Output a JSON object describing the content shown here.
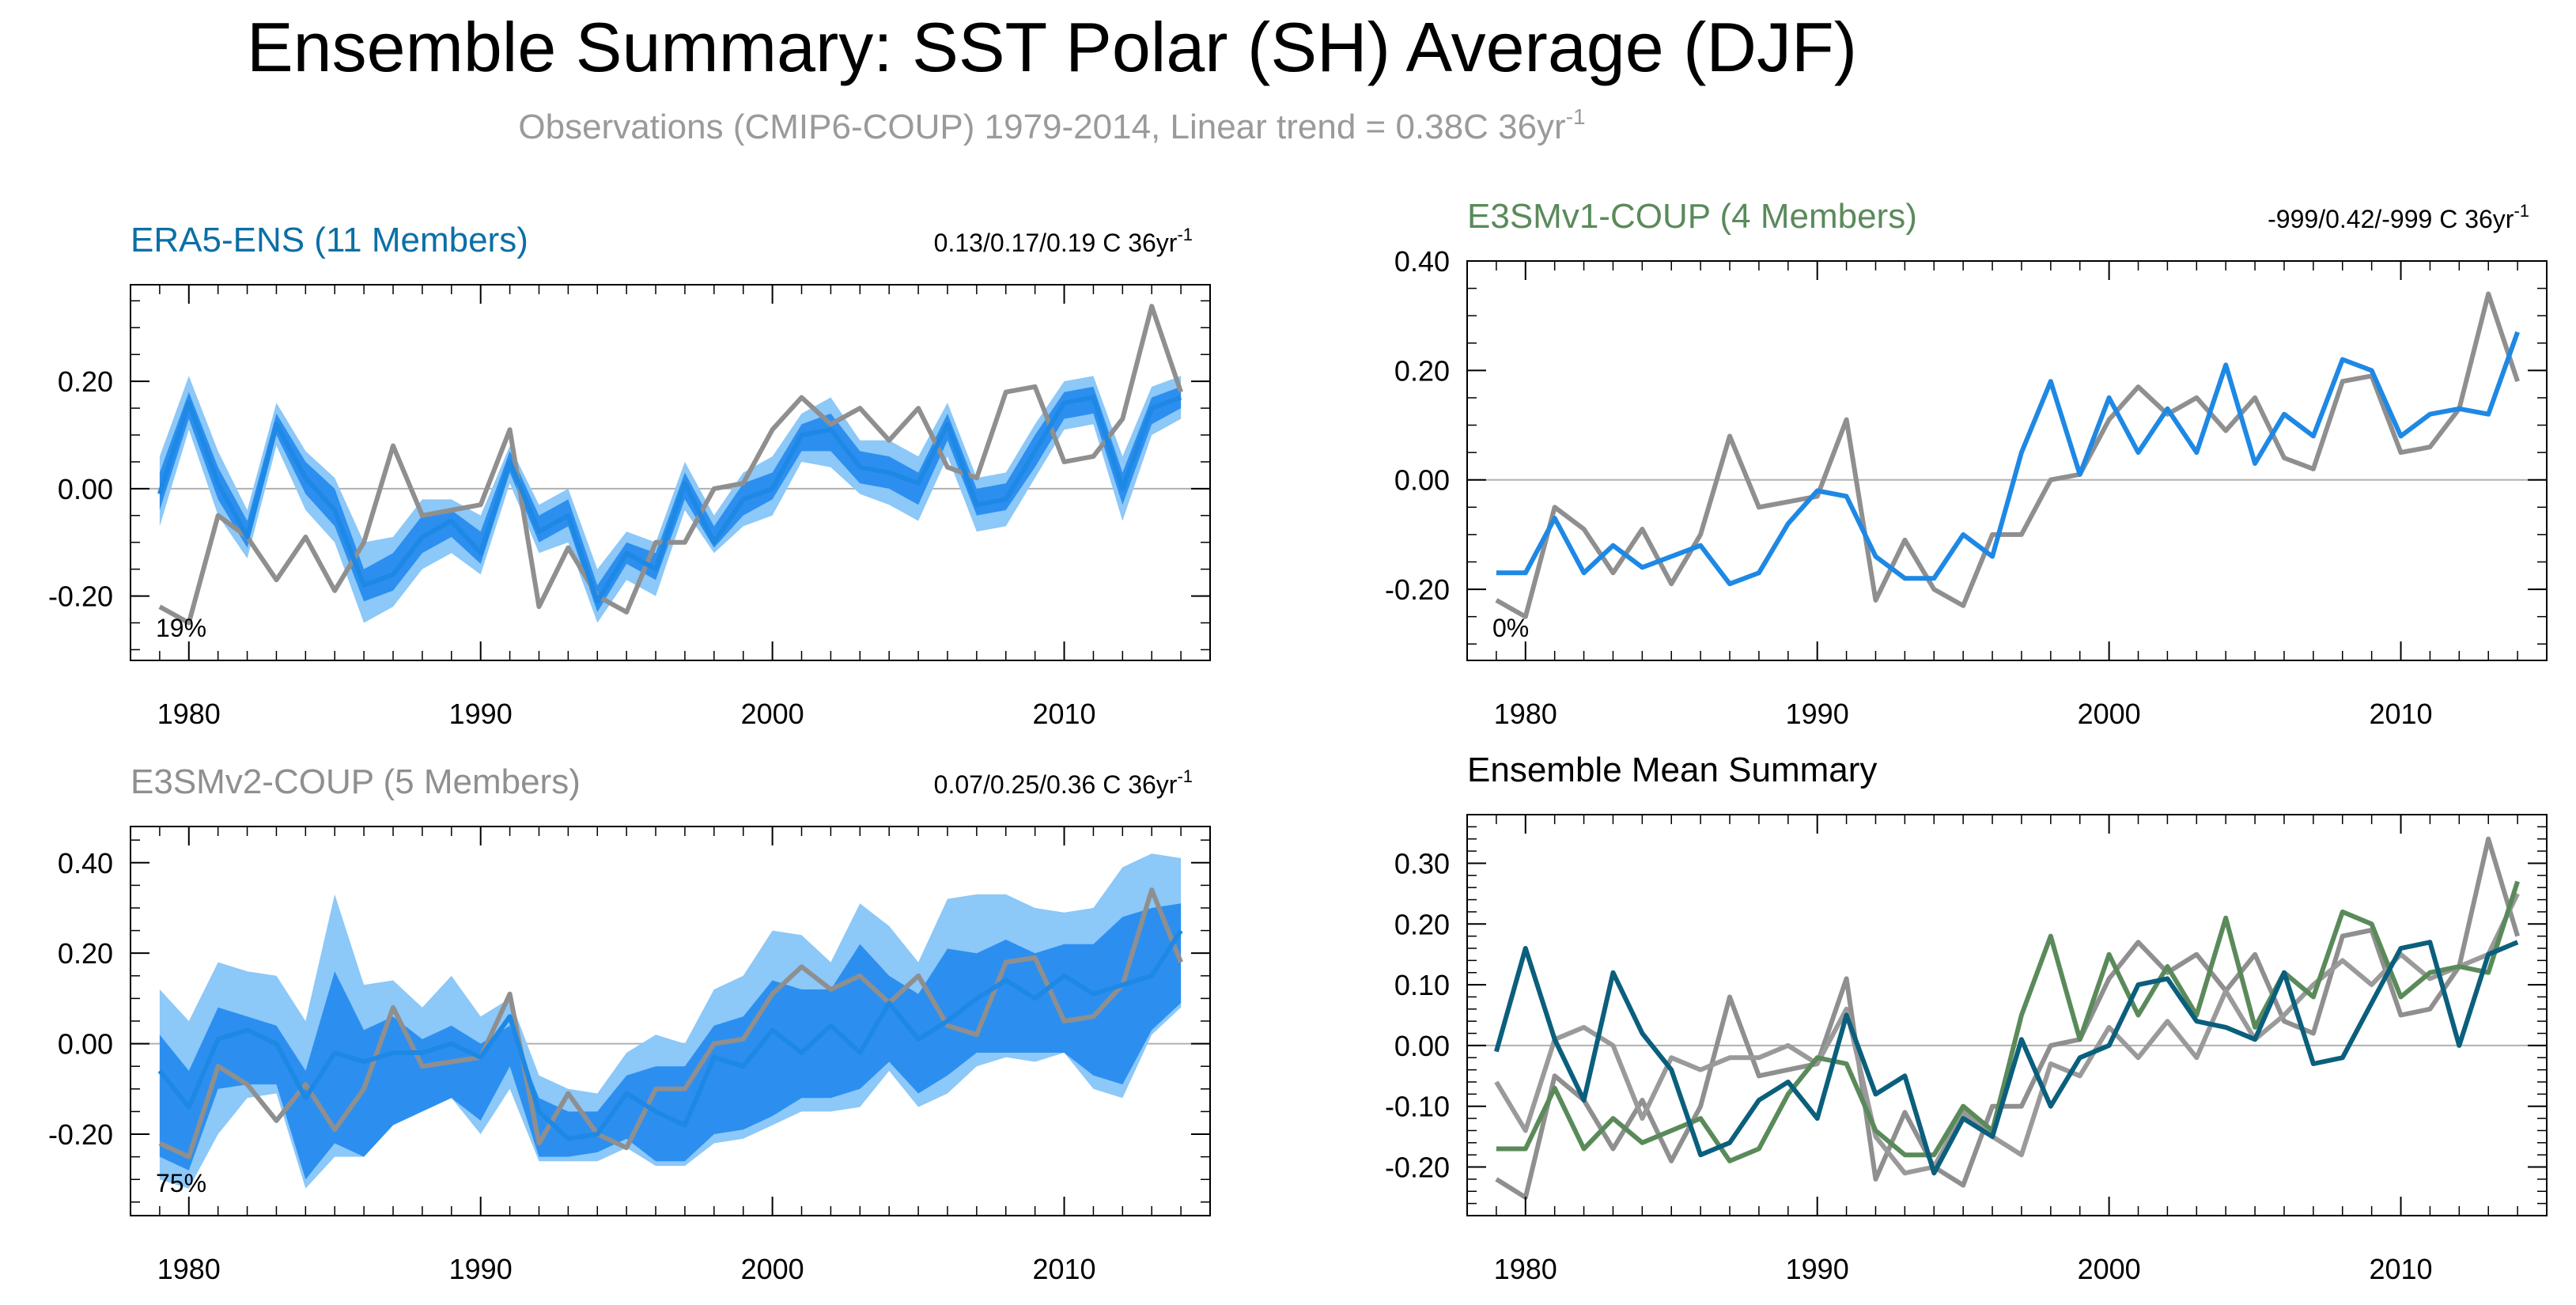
{
  "title": "Ensemble Summary: SST Polar (SH) Average (DJF)",
  "subtitle": "Observations (CMIP6-COUP) 1979-2014, Linear trend = 0.38C 36yr",
  "subtitle_exp": "-1",
  "colors": {
    "obs": "#8f8f8f",
    "ens_line": "#1e88e5",
    "band_inner": "#2c8ff0",
    "band_outer": "#8cc8f8",
    "era5_title": "#0b6fa6",
    "e3smv1_title": "#5a8a5a",
    "e3smv2_title": "#8f8f8f",
    "mean_era5": "#0a5f7c",
    "mean_e3smv1": "#5a8a5a",
    "mean_e3smv2": "#9a9a9a",
    "zero_line": "#b0b0b0"
  },
  "chart_data": [
    {
      "id": "era5",
      "type": "line",
      "title": "ERA5-ENS (11 Members)",
      "trend_label": "0.13/0.17/0.19 C 36yr",
      "trend_exp": "-1",
      "pct_label": "19%",
      "x": [
        1979,
        1980,
        1981,
        1982,
        1983,
        1984,
        1985,
        1986,
        1987,
        1988,
        1989,
        1990,
        1991,
        1992,
        1993,
        1994,
        1995,
        1996,
        1997,
        1998,
        1999,
        2000,
        2001,
        2002,
        2003,
        2004,
        2005,
        2006,
        2007,
        2008,
        2009,
        2010,
        2011,
        2012,
        2013,
        2014
      ],
      "xlim": [
        1978,
        2015
      ],
      "ylim": [
        -0.32,
        0.38
      ],
      "yticks": [
        -0.2,
        0.0,
        0.2
      ],
      "ytick_labels": [
        "-0.20",
        "0.00",
        "0.20"
      ],
      "xticks": [
        1980,
        1990,
        2000,
        2010
      ],
      "xtick_labels": [
        "1980",
        "1990",
        "2000",
        "2010"
      ],
      "series": [
        {
          "name": "observations",
          "role": "obs",
          "values": [
            -0.22,
            -0.25,
            -0.05,
            -0.09,
            -0.17,
            -0.09,
            -0.19,
            -0.1,
            0.08,
            -0.05,
            -0.04,
            -0.03,
            0.11,
            -0.22,
            -0.11,
            -0.2,
            -0.23,
            -0.1,
            -0.1,
            0.0,
            0.01,
            0.11,
            0.17,
            0.12,
            0.15,
            0.09,
            0.15,
            0.04,
            0.02,
            0.18,
            0.19,
            0.05,
            0.06,
            0.13,
            0.34,
            0.18
          ]
        },
        {
          "name": "ensemble mean",
          "role": "mean",
          "values": [
            -0.01,
            0.16,
            0.01,
            -0.09,
            0.12,
            0.02,
            -0.04,
            -0.18,
            -0.16,
            -0.09,
            -0.06,
            -0.12,
            0.05,
            -0.08,
            -0.05,
            -0.21,
            -0.12,
            -0.15,
            0.01,
            -0.1,
            -0.02,
            0.0,
            0.1,
            0.11,
            0.04,
            0.03,
            0.01,
            0.12,
            -0.03,
            -0.02,
            0.07,
            0.16,
            0.17,
            0.0,
            0.15,
            0.17
          ]
        }
      ],
      "band_outer": {
        "upper": [
          0.06,
          0.21,
          0.07,
          -0.04,
          0.16,
          0.07,
          0.02,
          -0.1,
          -0.09,
          -0.02,
          -0.02,
          -0.05,
          0.08,
          -0.03,
          0.0,
          -0.15,
          -0.08,
          -0.1,
          0.05,
          -0.05,
          0.03,
          0.06,
          0.14,
          0.17,
          0.09,
          0.09,
          0.06,
          0.16,
          0.02,
          0.03,
          0.12,
          0.2,
          0.21,
          0.06,
          0.19,
          0.21
        ],
        "lower": [
          -0.07,
          0.11,
          -0.05,
          -0.13,
          0.08,
          -0.04,
          -0.1,
          -0.25,
          -0.22,
          -0.15,
          -0.12,
          -0.16,
          0.01,
          -0.12,
          -0.1,
          -0.25,
          -0.17,
          -0.2,
          -0.04,
          -0.12,
          -0.07,
          -0.05,
          0.05,
          0.04,
          -0.01,
          -0.03,
          -0.06,
          0.06,
          -0.08,
          -0.07,
          0.02,
          0.11,
          0.12,
          -0.06,
          0.1,
          0.13
        ]
      },
      "band_inner": {
        "upper": [
          0.03,
          0.18,
          0.04,
          -0.06,
          0.14,
          0.05,
          0.0,
          -0.15,
          -0.12,
          -0.05,
          -0.04,
          -0.08,
          0.07,
          -0.05,
          -0.02,
          -0.18,
          -0.1,
          -0.12,
          0.03,
          -0.07,
          0.01,
          0.03,
          0.12,
          0.14,
          0.07,
          0.06,
          0.03,
          0.14,
          0.0,
          0.01,
          0.1,
          0.18,
          0.19,
          0.03,
          0.17,
          0.19
        ],
        "lower": [
          -0.04,
          0.13,
          -0.02,
          -0.11,
          0.1,
          -0.01,
          -0.07,
          -0.21,
          -0.19,
          -0.12,
          -0.09,
          -0.14,
          0.03,
          -0.1,
          -0.07,
          -0.23,
          -0.14,
          -0.17,
          -0.02,
          -0.11,
          -0.05,
          -0.02,
          0.07,
          0.07,
          0.01,
          0.0,
          -0.03,
          0.09,
          -0.05,
          -0.04,
          0.04,
          0.13,
          0.14,
          -0.03,
          0.12,
          0.15
        ]
      }
    },
    {
      "id": "e3smv1",
      "type": "line",
      "title": "E3SMv1-COUP (4 Members)",
      "trend_label": "-999/0.42/-999 C 36yr",
      "trend_exp": "-1",
      "pct_label": "0%",
      "x": [
        1979,
        1980,
        1981,
        1982,
        1983,
        1984,
        1985,
        1986,
        1987,
        1988,
        1989,
        1990,
        1991,
        1992,
        1993,
        1994,
        1995,
        1996,
        1997,
        1998,
        1999,
        2000,
        2001,
        2002,
        2003,
        2004,
        2005,
        2006,
        2007,
        2008,
        2009,
        2010,
        2011,
        2012,
        2013,
        2014
      ],
      "xlim": [
        1978,
        2015
      ],
      "ylim": [
        -0.33,
        0.4
      ],
      "yticks": [
        -0.2,
        0.0,
        0.2,
        0.4
      ],
      "ytick_labels": [
        "-0.20",
        "0.00",
        "0.20",
        "0.40"
      ],
      "xticks": [
        1980,
        1990,
        2000,
        2010
      ],
      "xtick_labels": [
        "1980",
        "1990",
        "2000",
        "2010"
      ],
      "series": [
        {
          "name": "observations",
          "role": "obs",
          "values": [
            -0.22,
            -0.25,
            -0.05,
            -0.09,
            -0.17,
            -0.09,
            -0.19,
            -0.1,
            0.08,
            -0.05,
            -0.04,
            -0.03,
            0.11,
            -0.22,
            -0.11,
            -0.2,
            -0.23,
            -0.1,
            -0.1,
            0.0,
            0.01,
            0.11,
            0.17,
            0.12,
            0.15,
            0.09,
            0.15,
            0.04,
            0.02,
            0.18,
            0.19,
            0.05,
            0.06,
            0.13,
            0.34,
            0.18
          ]
        },
        {
          "name": "ensemble mean",
          "role": "mean",
          "values": [
            -0.17,
            -0.17,
            -0.07,
            -0.17,
            -0.12,
            -0.16,
            -0.14,
            -0.12,
            -0.19,
            -0.17,
            -0.08,
            -0.02,
            -0.03,
            -0.14,
            -0.18,
            -0.18,
            -0.1,
            -0.14,
            0.05,
            0.18,
            0.01,
            0.15,
            0.05,
            0.13,
            0.05,
            0.21,
            0.03,
            0.12,
            0.08,
            0.22,
            0.2,
            0.08,
            0.12,
            0.13,
            0.12,
            0.27
          ]
        }
      ]
    },
    {
      "id": "e3smv2",
      "type": "line",
      "title": "E3SMv2-COUP (5 Members)",
      "trend_label": "0.07/0.25/0.36 C 36yr",
      "trend_exp": "-1",
      "pct_label": "75%",
      "x": [
        1979,
        1980,
        1981,
        1982,
        1983,
        1984,
        1985,
        1986,
        1987,
        1988,
        1989,
        1990,
        1991,
        1992,
        1993,
        1994,
        1995,
        1996,
        1997,
        1998,
        1999,
        2000,
        2001,
        2002,
        2003,
        2004,
        2005,
        2006,
        2007,
        2008,
        2009,
        2010,
        2011,
        2012,
        2013,
        2014
      ],
      "xlim": [
        1978,
        2015
      ],
      "ylim": [
        -0.38,
        0.48
      ],
      "yticks": [
        -0.2,
        0.0,
        0.2,
        0.4
      ],
      "ytick_labels": [
        "-0.20",
        "0.00",
        "0.20",
        "0.40"
      ],
      "xticks": [
        1980,
        1990,
        2000,
        2010
      ],
      "xtick_labels": [
        "1980",
        "1990",
        "2000",
        "2010"
      ],
      "series": [
        {
          "name": "observations",
          "role": "obs",
          "values": [
            -0.22,
            -0.25,
            -0.05,
            -0.09,
            -0.17,
            -0.09,
            -0.19,
            -0.1,
            0.08,
            -0.05,
            -0.04,
            -0.03,
            0.11,
            -0.22,
            -0.11,
            -0.2,
            -0.23,
            -0.1,
            -0.1,
            0.0,
            0.01,
            0.11,
            0.17,
            0.12,
            0.15,
            0.09,
            0.15,
            0.04,
            0.02,
            0.18,
            0.19,
            0.05,
            0.06,
            0.13,
            0.34,
            0.18
          ]
        },
        {
          "name": "ensemble mean",
          "role": "mean",
          "values": [
            -0.06,
            -0.14,
            0.01,
            0.03,
            0.0,
            -0.12,
            -0.02,
            -0.04,
            -0.02,
            -0.02,
            0.0,
            -0.03,
            0.06,
            -0.15,
            -0.21,
            -0.2,
            -0.11,
            -0.15,
            -0.18,
            -0.03,
            -0.05,
            0.03,
            -0.02,
            0.04,
            -0.02,
            0.09,
            0.01,
            0.05,
            0.1,
            0.14,
            0.1,
            0.15,
            0.11,
            0.13,
            0.15,
            0.25
          ]
        }
      ],
      "band_outer": {
        "upper": [
          0.12,
          0.05,
          0.18,
          0.16,
          0.15,
          0.05,
          0.33,
          0.13,
          0.14,
          0.08,
          0.15,
          0.06,
          0.1,
          -0.07,
          -0.1,
          -0.11,
          -0.02,
          0.02,
          0.0,
          0.12,
          0.15,
          0.25,
          0.24,
          0.18,
          0.31,
          0.26,
          0.18,
          0.32,
          0.33,
          0.33,
          0.3,
          0.29,
          0.3,
          0.39,
          0.42,
          0.41
        ],
        "lower": [
          -0.3,
          -0.32,
          -0.2,
          -0.12,
          -0.11,
          -0.32,
          -0.25,
          -0.25,
          -0.18,
          -0.14,
          -0.12,
          -0.2,
          -0.1,
          -0.26,
          -0.26,
          -0.26,
          -0.23,
          -0.27,
          -0.27,
          -0.22,
          -0.21,
          -0.18,
          -0.15,
          -0.15,
          -0.14,
          -0.06,
          -0.14,
          -0.11,
          -0.05,
          -0.03,
          -0.04,
          -0.02,
          -0.1,
          -0.12,
          0.02,
          0.08
        ]
      },
      "band_inner": {
        "upper": [
          0.02,
          -0.06,
          0.08,
          0.06,
          0.04,
          -0.06,
          0.16,
          0.03,
          0.06,
          0.01,
          0.04,
          0.0,
          0.04,
          -0.12,
          -0.15,
          -0.15,
          -0.07,
          -0.05,
          -0.05,
          0.04,
          0.06,
          0.14,
          0.12,
          0.12,
          0.22,
          0.15,
          0.11,
          0.21,
          0.2,
          0.23,
          0.2,
          0.22,
          0.22,
          0.28,
          0.3,
          0.31
        ],
        "lower": [
          -0.25,
          -0.28,
          -0.1,
          -0.09,
          -0.09,
          -0.3,
          -0.22,
          -0.25,
          -0.18,
          -0.15,
          -0.12,
          -0.17,
          -0.05,
          -0.25,
          -0.25,
          -0.24,
          -0.21,
          -0.26,
          -0.26,
          -0.2,
          -0.19,
          -0.16,
          -0.12,
          -0.12,
          -0.1,
          -0.04,
          -0.11,
          -0.07,
          -0.02,
          -0.02,
          -0.02,
          -0.02,
          -0.07,
          -0.09,
          0.03,
          0.09
        ]
      }
    },
    {
      "id": "mean",
      "type": "line",
      "title": "Ensemble Mean Summary",
      "x": [
        1979,
        1980,
        1981,
        1982,
        1983,
        1984,
        1985,
        1986,
        1987,
        1988,
        1989,
        1990,
        1991,
        1992,
        1993,
        1994,
        1995,
        1996,
        1997,
        1998,
        1999,
        2000,
        2001,
        2002,
        2003,
        2004,
        2005,
        2006,
        2007,
        2008,
        2009,
        2010,
        2011,
        2012,
        2013,
        2014
      ],
      "xlim": [
        1978,
        2015
      ],
      "ylim": [
        -0.28,
        0.38
      ],
      "yticks": [
        -0.2,
        -0.1,
        0.0,
        0.1,
        0.2,
        0.3
      ],
      "ytick_labels": [
        "-0.20",
        "-0.10",
        "0.00",
        "0.10",
        "0.20",
        "0.30"
      ],
      "xticks": [
        1980,
        1990,
        2000,
        2010
      ],
      "xtick_labels": [
        "1980",
        "1990",
        "2000",
        "2010"
      ],
      "series": [
        {
          "name": "observations",
          "role": "obs",
          "values": [
            -0.22,
            -0.25,
            -0.05,
            -0.09,
            -0.17,
            -0.09,
            -0.19,
            -0.1,
            0.08,
            -0.05,
            -0.04,
            -0.03,
            0.11,
            -0.22,
            -0.11,
            -0.2,
            -0.23,
            -0.1,
            -0.1,
            0.0,
            0.01,
            0.11,
            0.17,
            0.12,
            0.15,
            0.09,
            0.15,
            0.04,
            0.02,
            0.18,
            0.19,
            0.05,
            0.06,
            0.13,
            0.34,
            0.18
          ]
        },
        {
          "name": "E3SMv2-COUP",
          "role": "mean_e3smv2",
          "values": [
            -0.06,
            -0.14,
            0.01,
            0.03,
            0.0,
            -0.12,
            -0.02,
            -0.04,
            -0.02,
            -0.02,
            0.0,
            -0.03,
            0.06,
            -0.15,
            -0.21,
            -0.2,
            -0.11,
            -0.15,
            -0.18,
            -0.03,
            -0.05,
            0.03,
            -0.02,
            0.04,
            -0.02,
            0.09,
            0.01,
            0.05,
            0.1,
            0.14,
            0.1,
            0.15,
            0.11,
            0.13,
            0.15,
            0.25
          ]
        },
        {
          "name": "E3SMv1-COUP",
          "role": "mean_e3smv1",
          "values": [
            -0.17,
            -0.17,
            -0.07,
            -0.17,
            -0.12,
            -0.16,
            -0.14,
            -0.12,
            -0.19,
            -0.17,
            -0.08,
            -0.02,
            -0.03,
            -0.14,
            -0.18,
            -0.18,
            -0.1,
            -0.14,
            0.05,
            0.18,
            0.01,
            0.15,
            0.05,
            0.13,
            0.05,
            0.21,
            0.03,
            0.12,
            0.08,
            0.22,
            0.2,
            0.08,
            0.12,
            0.13,
            0.12,
            0.27
          ]
        },
        {
          "name": "ERA5-ENS",
          "role": "mean_era5",
          "values": [
            -0.01,
            0.16,
            0.01,
            -0.09,
            0.12,
            0.02,
            -0.04,
            -0.18,
            -0.16,
            -0.09,
            -0.06,
            -0.12,
            0.05,
            -0.08,
            -0.05,
            -0.21,
            -0.12,
            -0.15,
            0.01,
            -0.1,
            -0.02,
            0.0,
            0.1,
            0.11,
            0.04,
            0.03,
            0.01,
            0.12,
            -0.03,
            -0.02,
            0.07,
            0.16,
            0.17,
            0.0,
            0.15,
            0.17
          ]
        }
      ]
    }
  ]
}
